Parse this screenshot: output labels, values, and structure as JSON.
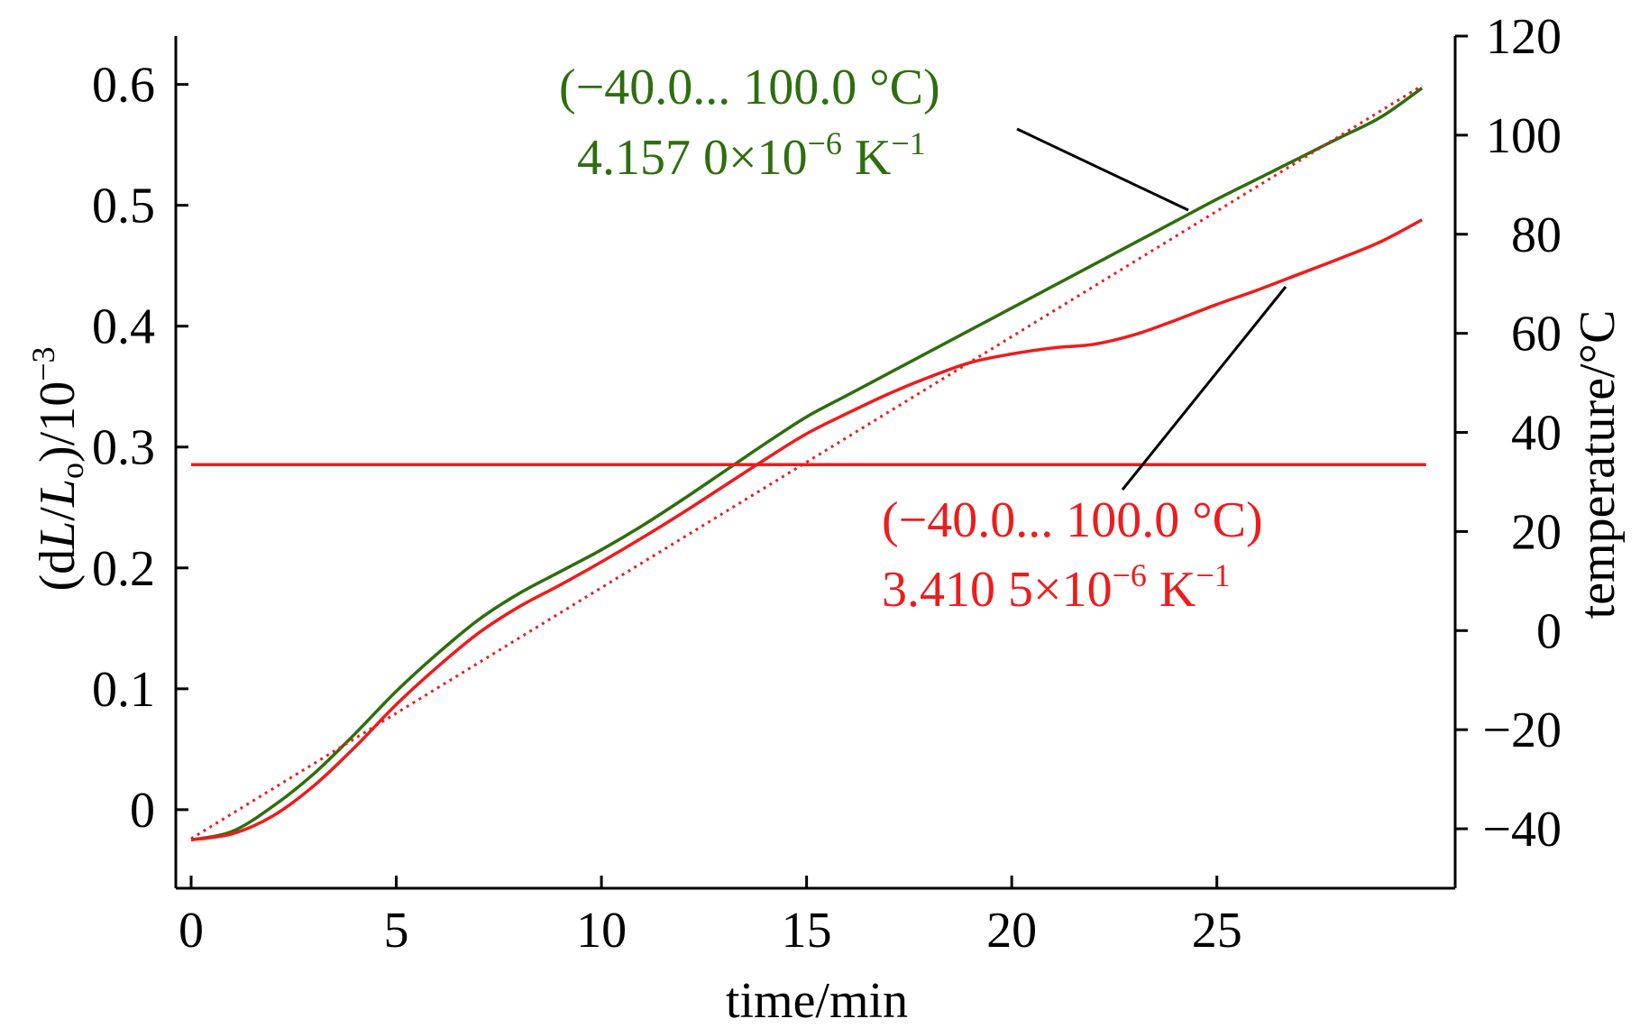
{
  "chart_data": {
    "type": "line",
    "xlabel": "time/min",
    "ylabel_left": "(dL/Lo)/10⁻³",
    "ylabel_left_parts": [
      "(d",
      "L",
      "/",
      "L",
      "o",
      ")/10",
      "−3"
    ],
    "ylabel_right": "temperature/°C",
    "xlim": [
      0,
      30.5
    ],
    "ylim_left": [
      -0.065,
      0.64
    ],
    "ylim_right": [
      -52,
      120
    ],
    "x_ticks": [
      0,
      5,
      10,
      15,
      20,
      25
    ],
    "x_tick_labels": [
      "0",
      "5",
      "10",
      "15",
      "20",
      "25"
    ],
    "y_left_ticks": [
      0,
      0.1,
      0.2,
      0.3,
      0.4,
      0.5,
      0.6
    ],
    "y_left_tick_labels": [
      "0",
      "0.1",
      "0.2",
      "0.3",
      "0.4",
      "0.5",
      "0.6"
    ],
    "y_right_ticks": [
      -40,
      -20,
      0,
      20,
      40,
      60,
      80,
      100,
      120
    ],
    "y_right_tick_labels": [
      "−40",
      "−20",
      "0",
      "20",
      "40",
      "60",
      "80",
      "100",
      "120"
    ],
    "grid": false,
    "legend": "none",
    "colors": {
      "green": "#2e6e0e",
      "red": "#ee1c1c",
      "axis": "#000000"
    },
    "series": [
      {
        "axis": "left",
        "color": "#2e6e0e",
        "style": "solid",
        "x": [
          0,
          1,
          2,
          3,
          4,
          5,
          6,
          7,
          8,
          9,
          10,
          11,
          12,
          13,
          14,
          15,
          16,
          17,
          18,
          19,
          20,
          21,
          22,
          23,
          24,
          25,
          26,
          27,
          28,
          29,
          30
        ],
        "y": [
          -0.025,
          -0.018,
          0.003,
          0.03,
          0.063,
          0.098,
          0.129,
          0.157,
          0.179,
          0.197,
          0.215,
          0.235,
          0.257,
          0.28,
          0.303,
          0.325,
          0.343,
          0.361,
          0.379,
          0.397,
          0.415,
          0.433,
          0.451,
          0.469,
          0.487,
          0.505,
          0.522,
          0.539,
          0.556,
          0.573,
          0.597
        ]
      },
      {
        "axis": "left",
        "color": "#ee1c1c",
        "style": "solid",
        "x": [
          0,
          1,
          2,
          3,
          4,
          5,
          6,
          7,
          8,
          9,
          10,
          11,
          12,
          13,
          14,
          15,
          16,
          17,
          18,
          19,
          20,
          21,
          22,
          23,
          24,
          25,
          26,
          27,
          28,
          29,
          30
        ],
        "y": [
          -0.025,
          -0.02,
          -0.005,
          0.02,
          0.052,
          0.087,
          0.118,
          0.146,
          0.168,
          0.186,
          0.205,
          0.225,
          0.246,
          0.268,
          0.29,
          0.311,
          0.328,
          0.344,
          0.358,
          0.37,
          0.377,
          0.382,
          0.385,
          0.393,
          0.405,
          0.418,
          0.43,
          0.443,
          0.456,
          0.47,
          0.488
        ]
      },
      {
        "axis": "right",
        "color": "#ee1c1c",
        "style": "dotted",
        "x": [
          0,
          30
        ],
        "y": [
          -42,
          110
        ]
      },
      {
        "axis": "right",
        "color": "#ee1c1c",
        "style": "solid",
        "x": [
          0,
          30.1
        ],
        "y": [
          33.5,
          33.5
        ]
      }
    ],
    "annotations": [
      {
        "color": "#2e6e0e",
        "line1": "(−40.0... 100.0 °C)",
        "line2": "4.157 0×10",
        "exp": "−6",
        "unit": " K",
        "unit_exp": "−1"
      },
      {
        "color": "#ee1c1c",
        "line1": "(−40.0... 100.0 °C)",
        "line2": "3.410 5×10",
        "exp": "−6",
        "unit": " K",
        "unit_exp": "−1"
      }
    ]
  }
}
